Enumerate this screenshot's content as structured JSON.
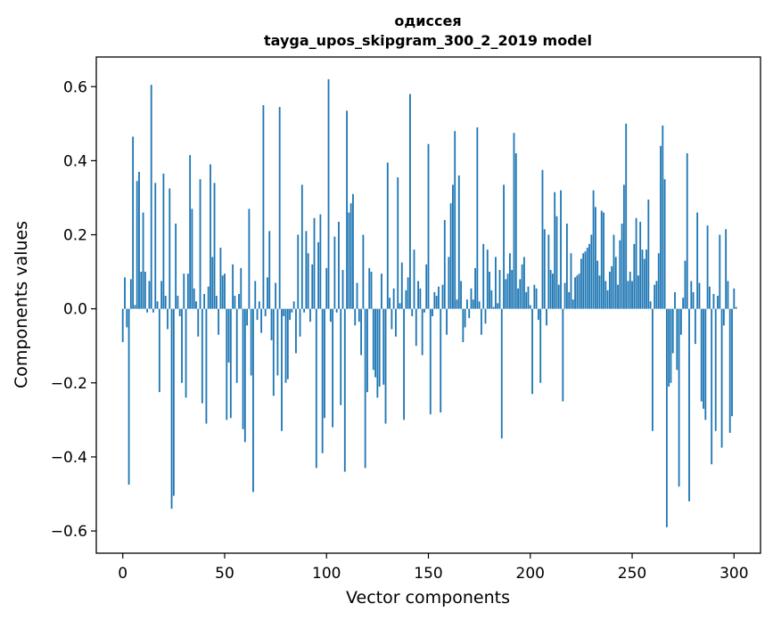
{
  "chart_data": {
    "type": "bar",
    "title_lines": [
      "одиссея",
      "tayga_upos_skipgram_300_2_2019 model"
    ],
    "xlabel": "Vector components",
    "ylabel": "Components values",
    "xlim": [
      -13,
      313
    ],
    "ylim": [
      -0.66,
      0.68
    ],
    "x_ticks": [
      0,
      50,
      100,
      150,
      200,
      250,
      300
    ],
    "y_ticks": [
      -0.6,
      -0.4,
      -0.2,
      0.0,
      0.2,
      0.4,
      0.6
    ],
    "x_tick_labels": [
      "0",
      "50",
      "100",
      "150",
      "200",
      "250",
      "300"
    ],
    "y_tick_labels": [
      "−0.6",
      "−0.4",
      "−0.2",
      "0.0",
      "0.2",
      "0.4",
      "0.6"
    ],
    "bar_color": "#1f77b4",
    "values": [
      -0.09,
      0.085,
      -0.05,
      -0.475,
      0.08,
      0.465,
      0.01,
      0.345,
      0.37,
      0.1,
      0.26,
      0.1,
      -0.01,
      0.075,
      0.605,
      -0.01,
      0.34,
      0.02,
      -0.225,
      0.075,
      0.365,
      0.035,
      -0.055,
      0.325,
      -0.54,
      -0.505,
      0.23,
      0.035,
      -0.02,
      -0.2,
      0.095,
      -0.24,
      0.095,
      0.415,
      0.27,
      0.055,
      0.02,
      -0.075,
      0.35,
      -0.255,
      0.04,
      -0.31,
      0.06,
      0.39,
      0.14,
      0.34,
      0.035,
      -0.07,
      0.165,
      0.09,
      0.095,
      -0.3,
      -0.145,
      -0.295,
      0.12,
      0.035,
      -0.2,
      0.04,
      0.11,
      -0.325,
      -0.36,
      -0.045,
      0.27,
      -0.18,
      -0.495,
      0.075,
      -0.03,
      0.02,
      -0.065,
      0.55,
      -0.02,
      0.085,
      0.21,
      -0.085,
      -0.235,
      0.07,
      -0.18,
      0.545,
      -0.33,
      -0.02,
      -0.2,
      -0.19,
      -0.03,
      -0.01,
      0.02,
      -0.12,
      0.2,
      -0.075,
      0.335,
      -0.01,
      0.21,
      0.15,
      -0.035,
      0.12,
      0.245,
      -0.43,
      0.18,
      0.255,
      -0.39,
      -0.295,
      0.11,
      0.62,
      -0.035,
      -0.32,
      0.195,
      -0.01,
      0.235,
      -0.26,
      0.105,
      -0.44,
      0.535,
      0.26,
      0.285,
      0.31,
      -0.045,
      0.07,
      -0.035,
      -0.125,
      0.2,
      -0.43,
      -0.225,
      0.11,
      0.1,
      -0.165,
      -0.185,
      -0.24,
      -0.21,
      0.095,
      -0.205,
      -0.31,
      0.395,
      0.03,
      -0.055,
      0.055,
      -0.075,
      0.355,
      0.015,
      0.125,
      -0.3,
      0.05,
      0.085,
      0.58,
      -0.02,
      0.16,
      -0.1,
      0.075,
      0.055,
      -0.125,
      -0.01,
      0.12,
      0.445,
      -0.285,
      -0.02,
      0.045,
      0.035,
      0.06,
      -0.28,
      0.065,
      0.24,
      -0.07,
      0.14,
      0.285,
      0.335,
      0.48,
      0.025,
      0.36,
      0.075,
      -0.09,
      -0.05,
      0.025,
      -0.025,
      0.055,
      0.025,
      0.11,
      0.49,
      0.02,
      -0.07,
      0.175,
      -0.04,
      0.16,
      0.1,
      0.05,
      0.005,
      0.14,
      0.015,
      0.105,
      -0.35,
      0.335,
      0.08,
      0.095,
      0.15,
      0.105,
      0.475,
      0.42,
      0.055,
      0.08,
      0.12,
      0.14,
      0.045,
      0.06,
      0.01,
      -0.23,
      0.065,
      0.055,
      -0.03,
      -0.2,
      0.375,
      0.215,
      -0.045,
      0.2,
      0.105,
      0.095,
      0.315,
      0.25,
      0.065,
      0.32,
      -0.25,
      0.07,
      0.23,
      0.045,
      0.15,
      0.025,
      0.085,
      0.09,
      0.095,
      0.135,
      0.15,
      0.155,
      0.165,
      0.175,
      0.2,
      0.32,
      0.275,
      0.13,
      0.09,
      0.265,
      0.26,
      0.075,
      0.05,
      0.1,
      0.115,
      0.2,
      0.14,
      0.065,
      0.185,
      0.23,
      0.335,
      0.5,
      0.075,
      0.1,
      0.075,
      0.175,
      0.245,
      0.09,
      0.235,
      0.16,
      0.135,
      0.16,
      0.295,
      0.02,
      -0.33,
      0.065,
      0.075,
      0.15,
      0.44,
      0.495,
      0.35,
      -0.59,
      -0.21,
      -0.2,
      -0.12,
      0.045,
      -0.165,
      -0.48,
      -0.07,
      0.03,
      0.13,
      0.42,
      -0.52,
      0.075,
      0.045,
      -0.095,
      0.26,
      0.07,
      -0.25,
      -0.27,
      -0.3,
      0.225,
      0.06,
      -0.42,
      0.04,
      -0.33,
      0.035,
      0.2,
      -0.375,
      -0.045,
      0.215,
      0.075,
      -0.335,
      -0.29,
      0.055,
      0.005
    ]
  }
}
